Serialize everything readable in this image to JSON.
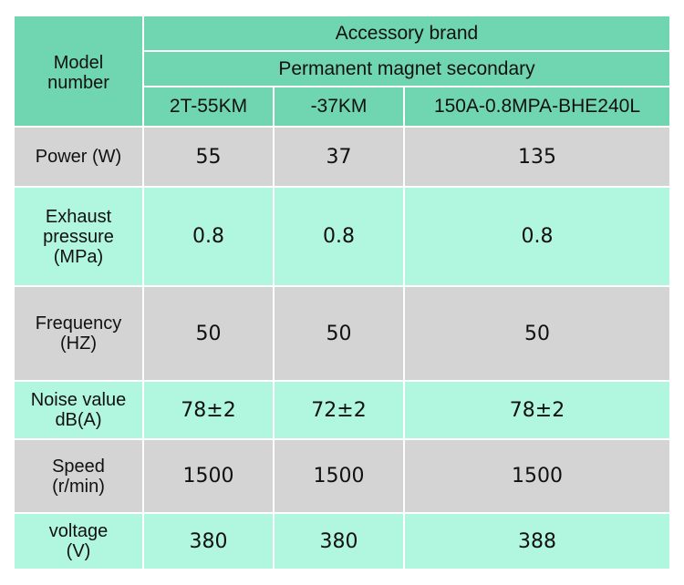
{
  "header": {
    "model_label": [
      "Model",
      "number"
    ],
    "brand": "Accessory brand",
    "secondary": "Permanent magnet secondary",
    "models": [
      "2T-55KM",
      "-37KM",
      "150A-0.8MPA-BHE240L"
    ]
  },
  "rows": [
    {
      "label": [
        "Power (W)"
      ],
      "values": [
        "55",
        "37",
        "135"
      ]
    },
    {
      "label": [
        "Exhaust",
        "pressure",
        "(MPa)"
      ],
      "values": [
        "0.8",
        "0.8",
        "0.8"
      ]
    },
    {
      "label": [
        "Frequency",
        "(HZ)"
      ],
      "values": [
        "50",
        "50",
        "50"
      ]
    },
    {
      "label": [
        "Noise value",
        "dB(A)"
      ],
      "values": [
        "78±2",
        "72±2",
        "78±2"
      ]
    },
    {
      "label": [
        "Speed",
        "(r/min)"
      ],
      "values": [
        "1500",
        "1500",
        "1500"
      ]
    },
    {
      "label": [
        "voltage",
        "(V)"
      ],
      "values": [
        "380",
        "380",
        "388"
      ]
    }
  ]
}
